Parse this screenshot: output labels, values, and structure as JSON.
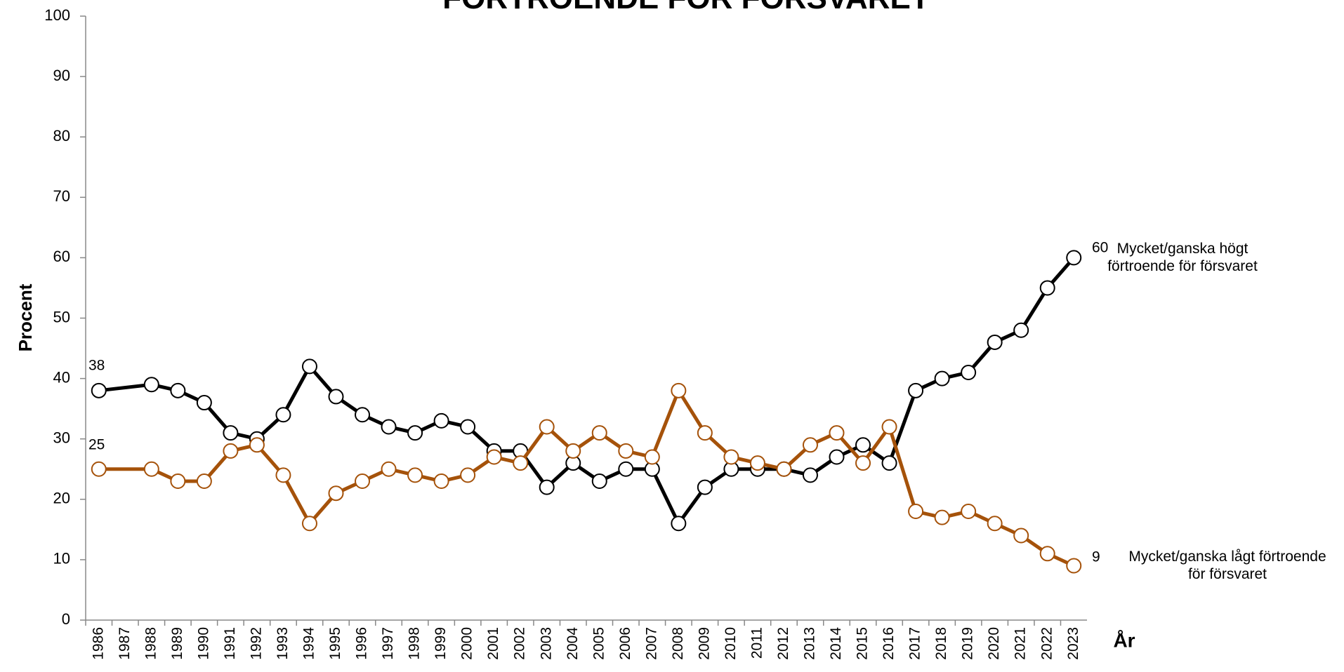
{
  "chart_data": {
    "type": "line",
    "title": "FÖRTROENDE FÖR FÖRSVARET",
    "y_label": "Procent",
    "x_label": "År",
    "x": [
      1986,
      1988,
      1989,
      1990,
      1991,
      1992,
      1993,
      1994,
      1995,
      1996,
      1997,
      1998,
      1999,
      2000,
      2001,
      2002,
      2003,
      2004,
      2005,
      2006,
      2007,
      2008,
      2009,
      2010,
      2011,
      2012,
      2013,
      2014,
      2015,
      2016,
      2017,
      2018,
      2019,
      2020,
      2021,
      2022,
      2023
    ],
    "series": [
      {
        "name": "Mycket/ganska högt förtroende för försvaret",
        "color": "#000000",
        "values": [
          38,
          39,
          38,
          36,
          31,
          30,
          34,
          42,
          37,
          34,
          32,
          31,
          33,
          32,
          28,
          28,
          22,
          26,
          23,
          25,
          25,
          16,
          22,
          25,
          25,
          25,
          24,
          27,
          29,
          26,
          38,
          40,
          41,
          46,
          48,
          55,
          60
        ]
      },
      {
        "name": "Mycket/ganska lågt förtroende för försvaret",
        "color": "#a5520a",
        "values": [
          25,
          25,
          23,
          23,
          28,
          29,
          24,
          16,
          21,
          23,
          25,
          24,
          23,
          24,
          27,
          26,
          32,
          28,
          31,
          28,
          27,
          38,
          31,
          27,
          26,
          25,
          29,
          31,
          26,
          32,
          18,
          17,
          18,
          16,
          14,
          11,
          9
        ]
      }
    ],
    "annotations": [
      "38",
      "25",
      "60",
      "9"
    ],
    "xlim": [
      1985.5,
      2023.5
    ],
    "xticks": [
      1986,
      1987,
      1988,
      1989,
      1990,
      1991,
      1992,
      1993,
      1994,
      1995,
      1996,
      1997,
      1998,
      1999,
      2000,
      2001,
      2002,
      2003,
      2004,
      2005,
      2006,
      2007,
      2008,
      2009,
      2010,
      2011,
      2012,
      2013,
      2014,
      2015,
      2016,
      2017,
      2018,
      2019,
      2020,
      2021,
      2022,
      2023
    ],
    "ylim": [
      0,
      100
    ],
    "yticks": [
      0,
      10,
      20,
      30,
      40,
      50,
      60,
      70,
      80,
      90,
      100
    ],
    "grid": false
  }
}
